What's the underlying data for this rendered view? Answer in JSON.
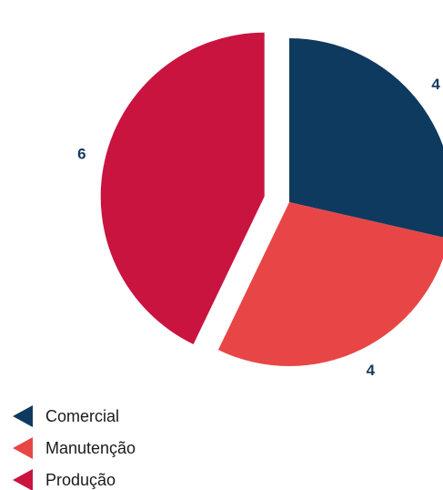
{
  "chart_data": {
    "type": "pie",
    "categories": [
      "Comercial",
      "Manutenção",
      "Produção"
    ],
    "values": [
      4,
      4,
      6
    ],
    "data_labels": [
      "4",
      "4",
      "6"
    ],
    "colors": [
      "#0f3a5f",
      "#e84646",
      "#c8143f"
    ],
    "exploded": [
      "",
      "",
      "Produção"
    ],
    "start_angle_deg": 0,
    "direction": "clockwise",
    "legend_position": "bottom-left",
    "title": ""
  }
}
